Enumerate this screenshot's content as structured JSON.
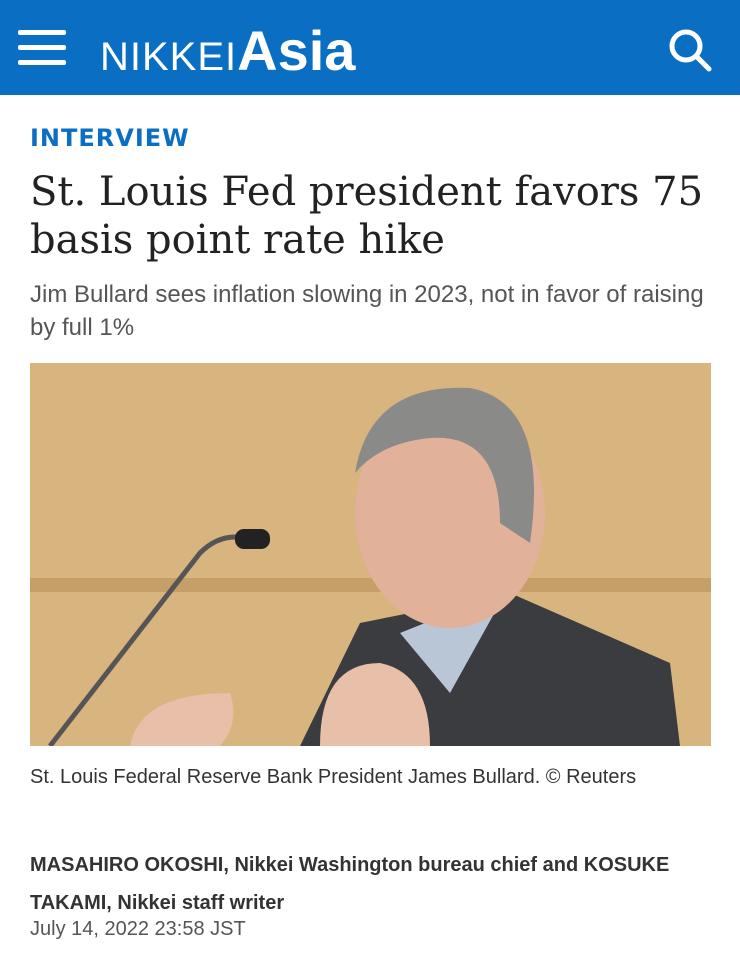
{
  "header": {
    "brand_left": "NIKKEI",
    "brand_right": "Asia"
  },
  "article": {
    "section": "INTERVIEW",
    "title": "St. Louis Fed president favors 75 basis point rate hike",
    "subtitle": "Jim Bullard sees inflation slowing in 2023, not in favor of raising by full 1%",
    "caption": "St. Louis Federal Reserve Bank President James Bullard. © Reuters",
    "byline": "MASAHIRO OKOSHI, Nikkei Washington bureau chief and KOSUKE TAKAMI, Nikkei staff writer",
    "date": "July 14, 2022 23:58 JST"
  }
}
